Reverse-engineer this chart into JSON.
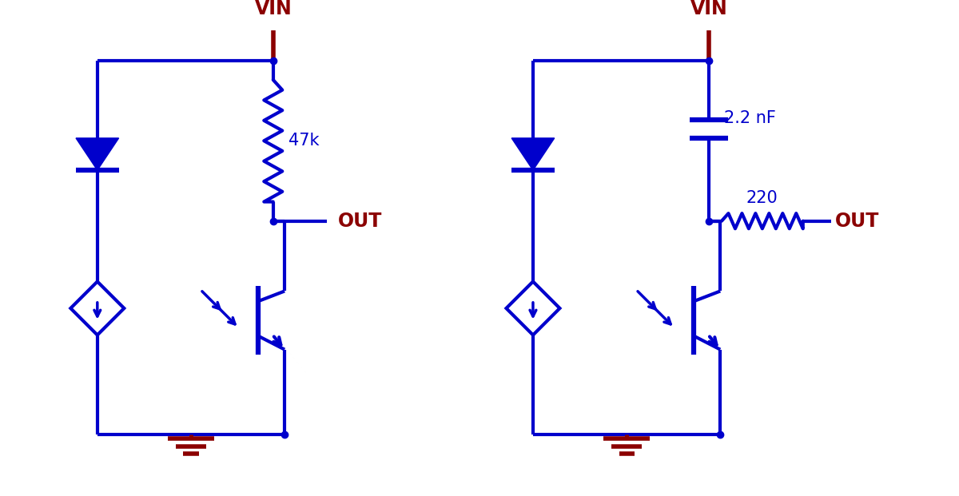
{
  "bg_color": "#ffffff",
  "blue": "#0000cc",
  "line_blue": "#000080",
  "dark_red": "#8b0000",
  "lw": 3.0,
  "fig_width": 12.0,
  "fig_height": 6.21,
  "c1_vin_label": "VIN",
  "c1_out_label": "OUT",
  "c1_res_label": "47k",
  "c2_vin_label": "VIN",
  "c2_out_label": "OUT",
  "c2_cap_label": "2.2 nF",
  "c2_res_label": "220"
}
